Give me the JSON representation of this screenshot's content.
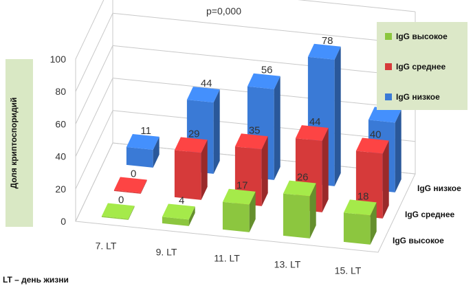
{
  "chart_data": {
    "type": "bar",
    "subtype": "3d-clustered-rows",
    "title": "p=0,000",
    "ylabel": "Доля криптоспоридий",
    "xlabel": "",
    "footnote": "LT – день жизни",
    "categories": [
      "7. LT",
      "9. LT",
      "11. LT",
      "13. LT",
      "15. LT"
    ],
    "ylim": [
      0,
      100
    ],
    "yticks": [
      0,
      20,
      40,
      60,
      80,
      100
    ],
    "grid": true,
    "legend_position": "top-right",
    "series": [
      {
        "name": "IgG высокое",
        "color": "#8cc63f",
        "values": [
          0,
          4,
          17,
          26,
          18
        ]
      },
      {
        "name": "IgG среднее",
        "color": "#d63a3a",
        "values": [
          0,
          29,
          35,
          44,
          40
        ]
      },
      {
        "name": "IgG низкое",
        "color": "#3a7ad6",
        "values": [
          11,
          44,
          56,
          78,
          43
        ]
      }
    ],
    "depth_labels": [
      "IgG низкое",
      "IgG среднее",
      "IgG высокое"
    ]
  }
}
